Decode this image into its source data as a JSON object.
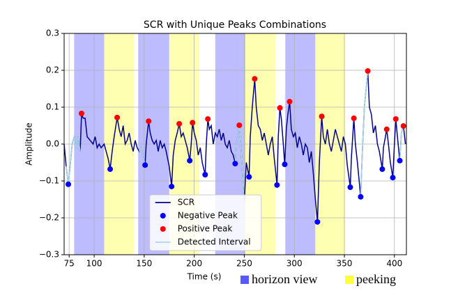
{
  "chart_data": {
    "type": "line",
    "title": "SCR with Unique Peaks Combinations",
    "xlabel": "Time (s)",
    "ylabel": "Amplitude",
    "xlim": [
      70,
      412
    ],
    "ylim": [
      -0.3,
      0.3
    ],
    "xticks": [
      75,
      100,
      150,
      200,
      250,
      300,
      350,
      400
    ],
    "yticks": [
      {
        "value": -0.3,
        "label": "−0.3"
      },
      {
        "value": -0.2,
        "label": "−0.2"
      },
      {
        "value": -0.1,
        "label": "−0.1"
      },
      {
        "value": 0,
        "label": "0.0"
      },
      0.1,
      0.2,
      0.3
    ],
    "grid": true,
    "legend": "lower center",
    "bands": [
      {
        "name": "horizon view",
        "color": "#2020ff",
        "ranges": [
          [
            80,
            110
          ],
          [
            144,
            175
          ],
          [
            221,
            251
          ],
          [
            291,
            321
          ]
        ]
      },
      {
        "name": "peeking",
        "color": "#ffff00",
        "ranges": [
          [
            110,
            140
          ],
          [
            175,
            205
          ],
          [
            251,
            281
          ],
          [
            321,
            351
          ]
        ]
      }
    ],
    "series": [
      {
        "name": "SCR",
        "style": "line",
        "color": "#00008b",
        "x": [
          70,
          72,
          74.2,
          76,
          78,
          80,
          82,
          84,
          86,
          87.4,
          89,
          91,
          93,
          96,
          99,
          101,
          103,
          105,
          107,
          110,
          112,
          114,
          116,
          118,
          120,
          123,
          125,
          127,
          129,
          131,
          133,
          135,
          137,
          139,
          141,
          143,
          145,
          147,
          149,
          150.9,
          152,
          154.4,
          156,
          158,
          160,
          162,
          164,
          166,
          168,
          170,
          172,
          175,
          177.4,
          179,
          181,
          183,
          185,
          187,
          189,
          191,
          193,
          195.5,
          197,
          198.3,
          200,
          202,
          204,
          206,
          208,
          210.9,
          212,
          213.6,
          215,
          217,
          219,
          221,
          223,
          225,
          227,
          229,
          231,
          233,
          235,
          237,
          239,
          240.9,
          242,
          243.5,
          245,
          247,
          249,
          250,
          252,
          254.8,
          256,
          258,
          260.4,
          262,
          264,
          266,
          268,
          270,
          272,
          274,
          276,
          278,
          280,
          282.7,
          284,
          285.6,
          287,
          289,
          290.4,
          292,
          293.5,
          295.3,
          297,
          299,
          301,
          303,
          305,
          307,
          309,
          311,
          313,
          315,
          317,
          319,
          321,
          323.1,
          325,
          327.4,
          329,
          331,
          333,
          335,
          337,
          339,
          341,
          343,
          345,
          347,
          349,
          351,
          353,
          355.9,
          357,
          359.5,
          361,
          363,
          366.3,
          368,
          370,
          373.4,
          375,
          377,
          379,
          381,
          383,
          385,
          387.9,
          389,
          391,
          392.3,
          394,
          396,
          398.4,
          400,
          401.4,
          403,
          405.4,
          407,
          409,
          411
        ],
        "values": [
          0.0,
          -0.06,
          -0.109,
          -0.06,
          0.0,
          0.02,
          -0.01,
          0.02,
          -0.02,
          0.083,
          0.07,
          0.07,
          0.02,
          0.01,
          0.0,
          0.02,
          -0.01,
          0.0,
          -0.01,
          0.0,
          -0.02,
          -0.04,
          -0.068,
          -0.02,
          0.02,
          0.072,
          0.04,
          0.02,
          0.05,
          0.0,
          0.01,
          0.03,
          0.0,
          -0.02,
          0.01,
          -0.01,
          -0.02,
          -0.01,
          -0.03,
          -0.057,
          0.0,
          0.062,
          0.03,
          0.01,
          0.0,
          0.01,
          -0.02,
          0.01,
          -0.01,
          0.0,
          -0.02,
          -0.06,
          -0.115,
          -0.03,
          0.01,
          0.03,
          0.055,
          0.02,
          0.03,
          0.01,
          -0.01,
          -0.045,
          0.0,
          0.058,
          0.03,
          0.01,
          -0.03,
          -0.01,
          -0.05,
          -0.083,
          0.0,
          0.068,
          0.04,
          0.05,
          0.0,
          0.03,
          0.02,
          0.04,
          0.01,
          0.03,
          0.0,
          -0.01,
          0.01,
          -0.02,
          -0.03,
          -0.053,
          0.0,
          0.02,
          0.051,
          -0.02,
          -0.12,
          -0.16,
          -0.05,
          -0.089,
          0.02,
          0.1,
          0.177,
          0.1,
          0.05,
          0.04,
          0.01,
          0.03,
          0.0,
          -0.03,
          0.0,
          0.02,
          -0.04,
          -0.111,
          0.02,
          0.098,
          0.07,
          0.0,
          -0.055,
          0.04,
          0.08,
          0.115,
          0.04,
          0.02,
          0.03,
          -0.01,
          0.02,
          0.0,
          -0.03,
          0.0,
          -0.01,
          -0.05,
          -0.02,
          -0.08,
          -0.15,
          -0.211,
          -0.05,
          0.075,
          0.02,
          0.0,
          0.04,
          0.0,
          -0.02,
          0.01,
          0.04,
          0.02,
          0.0,
          -0.02,
          0.02,
          0.0,
          -0.06,
          -0.117,
          -0.04,
          0.07,
          0.0,
          -0.05,
          -0.143,
          -0.02,
          0.1,
          0.198,
          0.1,
          0.08,
          0.03,
          0.05,
          0.0,
          -0.02,
          -0.068,
          -0.01,
          0.02,
          0.04,
          0.0,
          -0.05,
          -0.091,
          0.0,
          0.068,
          0.02,
          -0.045,
          0.03,
          0.049,
          0.0
        ]
      },
      {
        "name": "Negative Peak",
        "style": "scatter",
        "color": "#0000ff",
        "x": [
          74.2,
          116,
          150.9,
          177.4,
          195.5,
          210.9,
          240.9,
          254.8,
          282.7,
          290.4,
          323.1,
          355.9,
          366.3,
          387.9,
          398.4,
          405.4
        ],
        "values": [
          -0.109,
          -0.068,
          -0.057,
          -0.115,
          -0.045,
          -0.083,
          -0.053,
          -0.089,
          -0.111,
          -0.055,
          -0.211,
          -0.117,
          -0.143,
          -0.068,
          -0.091,
          -0.045
        ]
      },
      {
        "name": "Positive Peak",
        "style": "scatter",
        "color": "#ff0000",
        "x": [
          87.4,
          123,
          154.4,
          185,
          198.3,
          213.6,
          245,
          260.4,
          285.6,
          295.3,
          327.4,
          359.5,
          373.4,
          392.3,
          401.4,
          409
        ],
        "values": [
          0.083,
          0.072,
          0.062,
          0.055,
          0.058,
          0.068,
          0.051,
          0.177,
          0.098,
          0.115,
          0.075,
          0.07,
          0.198,
          0.04,
          0.068,
          0.049
        ]
      },
      {
        "name": "Detected Interval",
        "style": "line",
        "color": "#a8d8e8",
        "x": [
          72,
          74.2,
          76,
          78,
          80,
          82,
          84,
          86,
          86.5,
          145,
          147,
          149,
          150.9,
          151,
          240.9,
          242,
          243.5,
          245,
          247,
          249,
          250,
          251,
          366.3,
          368,
          370,
          373.4,
          374,
          405.4,
          407,
          409
        ],
        "values": [
          -0.06,
          -0.109,
          -0.06,
          0.0,
          0.02,
          -0.01,
          0.02,
          -0.02,
          null,
          -0.02,
          -0.01,
          -0.03,
          -0.057,
          null,
          -0.053,
          0.0,
          0.02,
          0.051,
          -0.02,
          -0.12,
          -0.16,
          null,
          -0.143,
          -0.02,
          0.1,
          0.198,
          null,
          -0.045,
          0.03,
          0.049
        ]
      }
    ]
  }
}
